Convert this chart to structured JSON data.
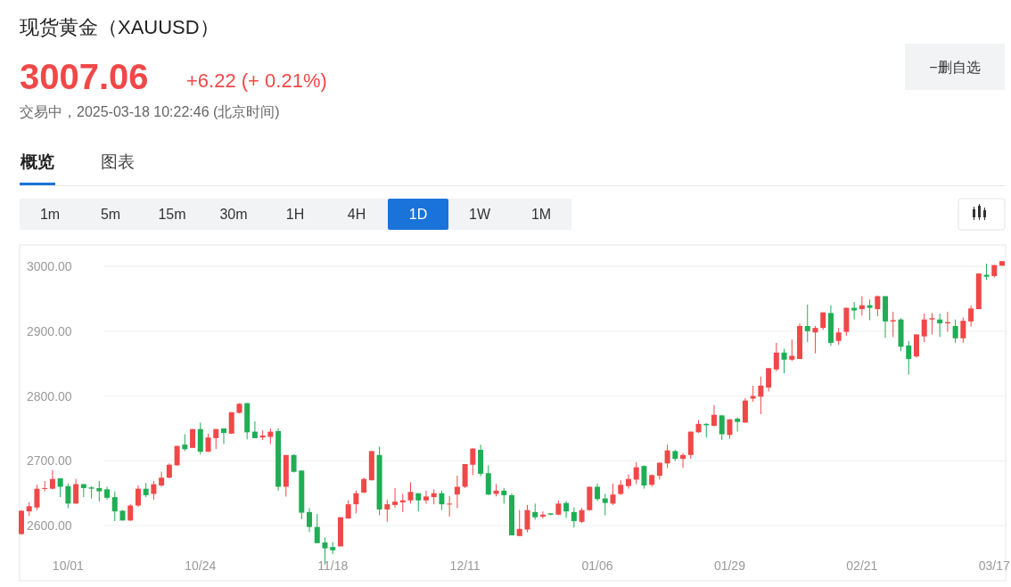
{
  "chart_data": {
    "type": "candlestick",
    "title": "现货黄金（XAUUSD）",
    "subtitle": "3007.06",
    "annotations": [
      "+6.22 (+ 0.21%)",
      "交易中，2025-03-18 10:22:46 (北京时间)",
      "−删自选",
      "概览",
      "图表",
      "1m",
      "5m",
      "15m",
      "30m",
      "1H",
      "4H",
      "1D",
      "1W",
      "1M"
    ],
    "categories": [
      null,
      null,
      null,
      null,
      null,
      null,
      "10/01",
      null,
      null,
      null,
      null,
      null,
      null,
      null,
      null,
      null,
      null,
      null,
      null,
      null,
      null,
      null,
      null,
      "10/24",
      null,
      null,
      null,
      null,
      null,
      null,
      null,
      null,
      null,
      null,
      null,
      null,
      null,
      null,
      null,
      null,
      "11/18",
      null,
      null,
      null,
      null,
      null,
      null,
      null,
      null,
      null,
      null,
      null,
      null,
      null,
      null,
      null,
      null,
      "12/11",
      null,
      null,
      null,
      null,
      null,
      null,
      null,
      null,
      null,
      null,
      null,
      null,
      null,
      null,
      null,
      null,
      "01/06",
      null,
      null,
      null,
      null,
      null,
      null,
      null,
      null,
      null,
      null,
      null,
      null,
      null,
      null,
      null,
      null,
      "01/29",
      null,
      null,
      null,
      null,
      null,
      null,
      null,
      null,
      null,
      null,
      null,
      null,
      null,
      null,
      null,
      null,
      "02/21",
      null,
      null,
      null,
      null,
      null,
      null,
      null,
      null,
      null,
      null,
      null,
      null,
      null,
      null,
      null,
      null,
      "03/17",
      null
    ],
    "ohlc": [
      [
        2587,
        2624,
        2586,
        2623
      ],
      [
        2622,
        2636,
        2615,
        2630
      ],
      [
        2628,
        2663,
        2624,
        2657
      ],
      [
        2657,
        2669,
        2653,
        2658
      ],
      [
        2657,
        2686,
        2656,
        2672
      ],
      [
        2673,
        2673,
        2644,
        2660
      ],
      [
        2661,
        2665,
        2627,
        2634
      ],
      [
        2634,
        2672,
        2634,
        2664
      ],
      [
        2664,
        2664,
        2644,
        2658
      ],
      [
        2659,
        2661,
        2642,
        2657
      ],
      [
        2658,
        2669,
        2637,
        2653
      ],
      [
        2656,
        2660,
        2640,
        2643
      ],
      [
        2644,
        2653,
        2607,
        2622
      ],
      [
        2623,
        2624,
        2608,
        2608
      ],
      [
        2608,
        2633,
        2607,
        2631
      ],
      [
        2631,
        2662,
        2629,
        2657
      ],
      [
        2657,
        2666,
        2644,
        2647
      ],
      [
        2649,
        2669,
        2640,
        2664
      ],
      [
        2662,
        2683,
        2660,
        2674
      ],
      [
        2674,
        2696,
        2673,
        2694
      ],
      [
        2693,
        2723,
        2693,
        2723
      ],
      [
        2725,
        2741,
        2715,
        2718
      ],
      [
        2720,
        2749,
        2720,
        2749
      ],
      [
        2749,
        2759,
        2710,
        2714
      ],
      [
        2714,
        2742,
        2714,
        2736
      ],
      [
        2735,
        2749,
        2718,
        2749
      ],
      [
        2750,
        2750,
        2726,
        2743
      ],
      [
        2742,
        2775,
        2742,
        2775
      ],
      [
        2774,
        2789,
        2773,
        2788
      ],
      [
        2789,
        2789,
        2733,
        2744
      ],
      [
        2745,
        2761,
        2735,
        2735
      ],
      [
        2736,
        2747,
        2732,
        2739
      ],
      [
        2737,
        2750,
        2726,
        2745
      ],
      [
        2746,
        2750,
        2654,
        2660
      ],
      [
        2660,
        2709,
        2645,
        2709
      ],
      [
        2709,
        2710,
        2682,
        2683
      ],
      [
        2685,
        2685,
        2610,
        2620
      ],
      [
        2621,
        2627,
        2590,
        2598
      ],
      [
        2598,
        2618,
        2573,
        2573
      ],
      [
        2574,
        2582,
        2540,
        2565
      ],
      [
        2567,
        2575,
        2556,
        2562
      ],
      [
        2568,
        2613,
        2568,
        2613
      ],
      [
        2611,
        2639,
        2611,
        2633
      ],
      [
        2633,
        2654,
        2619,
        2650
      ],
      [
        2651,
        2674,
        2650,
        2672
      ],
      [
        2670,
        2715,
        2670,
        2715
      ],
      [
        2709,
        2722,
        2616,
        2625
      ],
      [
        2625,
        2640,
        2606,
        2633
      ],
      [
        2632,
        2658,
        2628,
        2637
      ],
      [
        2636,
        2649,
        2621,
        2639
      ],
      [
        2639,
        2667,
        2634,
        2652
      ],
      [
        2650,
        2650,
        2622,
        2639
      ],
      [
        2639,
        2654,
        2634,
        2645
      ],
      [
        2644,
        2656,
        2633,
        2650
      ],
      [
        2650,
        2654,
        2624,
        2633
      ],
      [
        2633,
        2646,
        2614,
        2634
      ],
      [
        2648,
        2677,
        2627,
        2660
      ],
      [
        2660,
        2695,
        2658,
        2695
      ],
      [
        2694,
        2719,
        2678,
        2719
      ],
      [
        2717,
        2725,
        2676,
        2680
      ],
      [
        2681,
        2693,
        2647,
        2648
      ],
      [
        2649,
        2664,
        2645,
        2654
      ],
      [
        2654,
        2658,
        2634,
        2647
      ],
      [
        2647,
        2650,
        2585,
        2585
      ],
      [
        2584,
        2624,
        2584,
        2595
      ],
      [
        2594,
        2632,
        2590,
        2624
      ],
      [
        2621,
        2634,
        2609,
        2613
      ],
      [
        2614,
        2622,
        2611,
        2617
      ],
      [
        2619,
        2619,
        2616,
        2617
      ],
      [
        2617,
        2639,
        2616,
        2634
      ],
      [
        2635,
        2638,
        2612,
        2622
      ],
      [
        2621,
        2628,
        2597,
        2607
      ],
      [
        2606,
        2627,
        2604,
        2624
      ],
      [
        2624,
        2660,
        2623,
        2660
      ],
      [
        2660,
        2665,
        2638,
        2641
      ],
      [
        2642,
        2649,
        2616,
        2635
      ],
      [
        2634,
        2665,
        2632,
        2648
      ],
      [
        2649,
        2670,
        2647,
        2663
      ],
      [
        2661,
        2679,
        2657,
        2672
      ],
      [
        2671,
        2698,
        2664,
        2690
      ],
      [
        2692,
        2693,
        2657,
        2662
      ],
      [
        2663,
        2679,
        2660,
        2678
      ],
      [
        2677,
        2698,
        2671,
        2697
      ],
      [
        2696,
        2725,
        2689,
        2716
      ],
      [
        2715,
        2717,
        2700,
        2703
      ],
      [
        2703,
        2712,
        2689,
        2709
      ],
      [
        2709,
        2745,
        2703,
        2745
      ],
      [
        2744,
        2763,
        2743,
        2757
      ],
      [
        2757,
        2758,
        2736,
        2755
      ],
      [
        2754,
        2786,
        2753,
        2771
      ],
      [
        2770,
        2771,
        2732,
        2741
      ],
      [
        2740,
        2764,
        2734,
        2764
      ],
      [
        2765,
        2767,
        2745,
        2760
      ],
      [
        2759,
        2797,
        2759,
        2793
      ],
      [
        2796,
        2816,
        2791,
        2800
      ],
      [
        2799,
        2830,
        2772,
        2816
      ],
      [
        2813,
        2843,
        2807,
        2843
      ],
      [
        2841,
        2882,
        2838,
        2867
      ],
      [
        2867,
        2873,
        2835,
        2856
      ],
      [
        2856,
        2887,
        2854,
        2862
      ],
      [
        2857,
        2912,
        2857,
        2908
      ],
      [
        2908,
        2941,
        2883,
        2900
      ],
      [
        2898,
        2908,
        2866,
        2905
      ],
      [
        2905,
        2929,
        2902,
        2929
      ],
      [
        2928,
        2940,
        2877,
        2882
      ],
      [
        2885,
        2905,
        2879,
        2898
      ],
      [
        2899,
        2936,
        2893,
        2936
      ],
      [
        2936,
        2945,
        2918,
        2932
      ],
      [
        2934,
        2954,
        2924,
        2940
      ],
      [
        2940,
        2949,
        2917,
        2936
      ],
      [
        2934,
        2955,
        2923,
        2954
      ],
      [
        2954,
        2954,
        2890,
        2915
      ],
      [
        2915,
        2930,
        2891,
        2917
      ],
      [
        2918,
        2920,
        2869,
        2876
      ],
      [
        2878,
        2885,
        2833,
        2857
      ],
      [
        2861,
        2895,
        2859,
        2895
      ],
      [
        2892,
        2927,
        2883,
        2918
      ],
      [
        2918,
        2928,
        2895,
        2920
      ],
      [
        2918,
        2927,
        2891,
        2912
      ],
      [
        2912,
        2930,
        2899,
        2914
      ],
      [
        2908,
        2918,
        2882,
        2889
      ],
      [
        2889,
        2921,
        2882,
        2916
      ],
      [
        2915,
        2940,
        2907,
        2935
      ],
      [
        2934,
        2989,
        2934,
        2989
      ],
      [
        2987,
        3004,
        2979,
        2984
      ],
      [
        2985,
        3002,
        2983,
        3002
      ],
      [
        3001,
        3008,
        3001,
        3008
      ]
    ],
    "ylim": [
      2515,
      3033
    ],
    "yticks": [
      {
        "value": 2600,
        "label": "2600.00"
      },
      {
        "value": 2700,
        "label": "2700.00"
      },
      {
        "value": 2800,
        "label": "2800.00"
      },
      {
        "value": 2900,
        "label": "2900.00"
      },
      {
        "value": 3000,
        "label": "3000.00"
      }
    ],
    "grid": "y"
  }
}
